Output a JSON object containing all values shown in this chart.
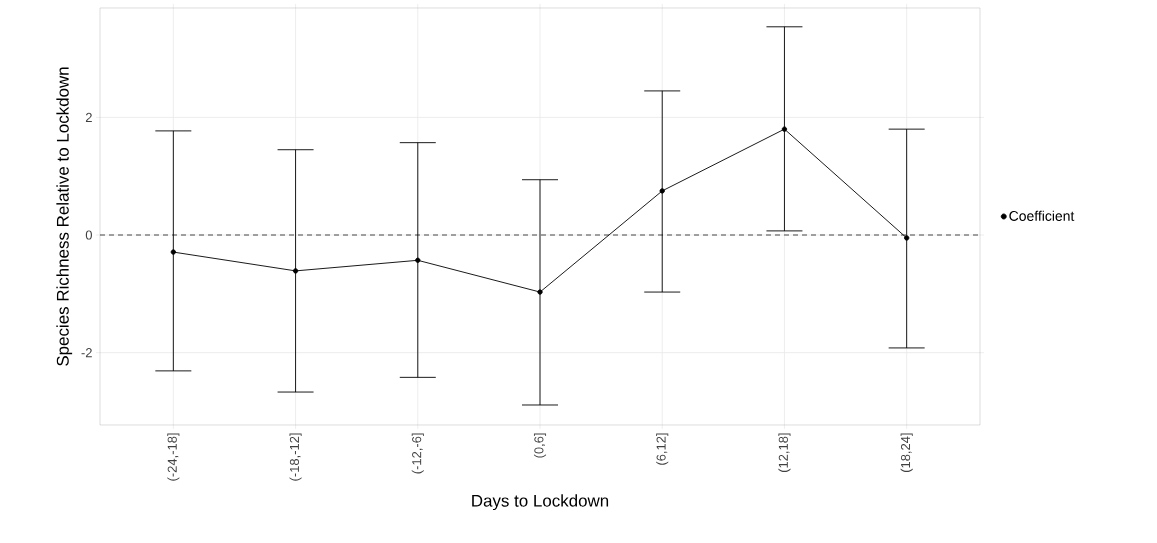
{
  "chart_data": {
    "type": "line",
    "xlabel": "Days to Lockdown",
    "ylabel": "Species Richness Relative to Lockdown",
    "categories": [
      "(-24,-18]",
      "(-18,-12]",
      "(-12,-6]",
      "(0,6]",
      "(6,12]",
      "(12,18]",
      "(18,24]"
    ],
    "series": [
      {
        "name": "Coefficient",
        "color": "#000000",
        "values": [
          -0.29,
          -0.61,
          -0.43,
          -0.97,
          0.75,
          1.8,
          -0.05
        ],
        "errors": [
          [
            -2.31,
            1.77
          ],
          [
            -2.67,
            1.45
          ],
          [
            -2.42,
            1.57
          ],
          [
            -2.89,
            0.94
          ],
          [
            -0.97,
            2.45
          ],
          [
            0.07,
            3.54
          ],
          [
            -1.92,
            1.8
          ]
        ]
      }
    ],
    "ylim": [
      -3.23,
      3.86
    ],
    "yticks": [
      -2,
      0,
      2
    ],
    "ref_lines": [
      {
        "axis": "y",
        "value": 0,
        "line_style": "dashed",
        "color": "#333333"
      }
    ],
    "grid": true,
    "legend": "right",
    "marker": "circle",
    "line_style": "solid"
  }
}
